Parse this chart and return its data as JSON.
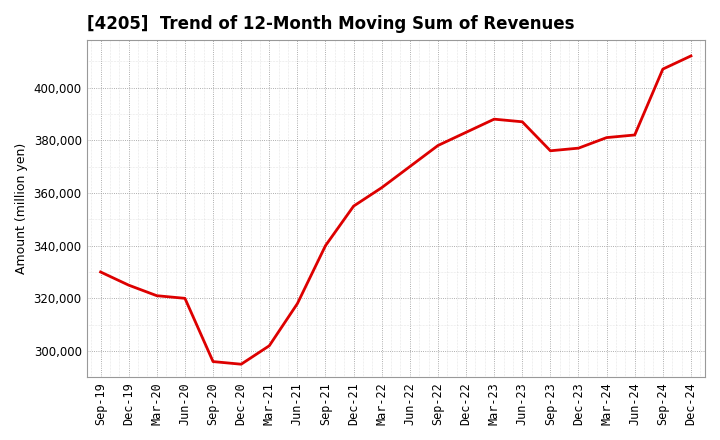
{
  "title": "[4205]  Trend of 12-Month Moving Sum of Revenues",
  "ylabel": "Amount (million yen)",
  "background_color": "#ffffff",
  "plot_bg_color": "#ffffff",
  "line_color": "#dd0000",
  "line_width": 2.0,
  "x_labels": [
    "Sep-19",
    "Dec-19",
    "Mar-20",
    "Jun-20",
    "Sep-20",
    "Dec-20",
    "Mar-21",
    "Jun-21",
    "Sep-21",
    "Dec-21",
    "Mar-22",
    "Jun-22",
    "Sep-22",
    "Dec-22",
    "Mar-23",
    "Jun-23",
    "Sep-23",
    "Dec-23",
    "Mar-24",
    "Jun-24",
    "Sep-24",
    "Dec-24"
  ],
  "y_values": [
    330000,
    325000,
    321000,
    320000,
    296000,
    295000,
    302000,
    318000,
    340000,
    355000,
    362000,
    370000,
    378000,
    383000,
    388000,
    387000,
    376000,
    377000,
    381000,
    382000,
    407000,
    412000
  ],
  "ylim_min": 290000,
  "ylim_max": 418000,
  "ytick_values": [
    300000,
    320000,
    340000,
    360000,
    380000,
    400000
  ],
  "title_fontsize": 12,
  "axis_fontsize": 8.5,
  "ylabel_fontsize": 9,
  "grid_color": "#888888",
  "grid_minor_color": "#bbbbbb"
}
